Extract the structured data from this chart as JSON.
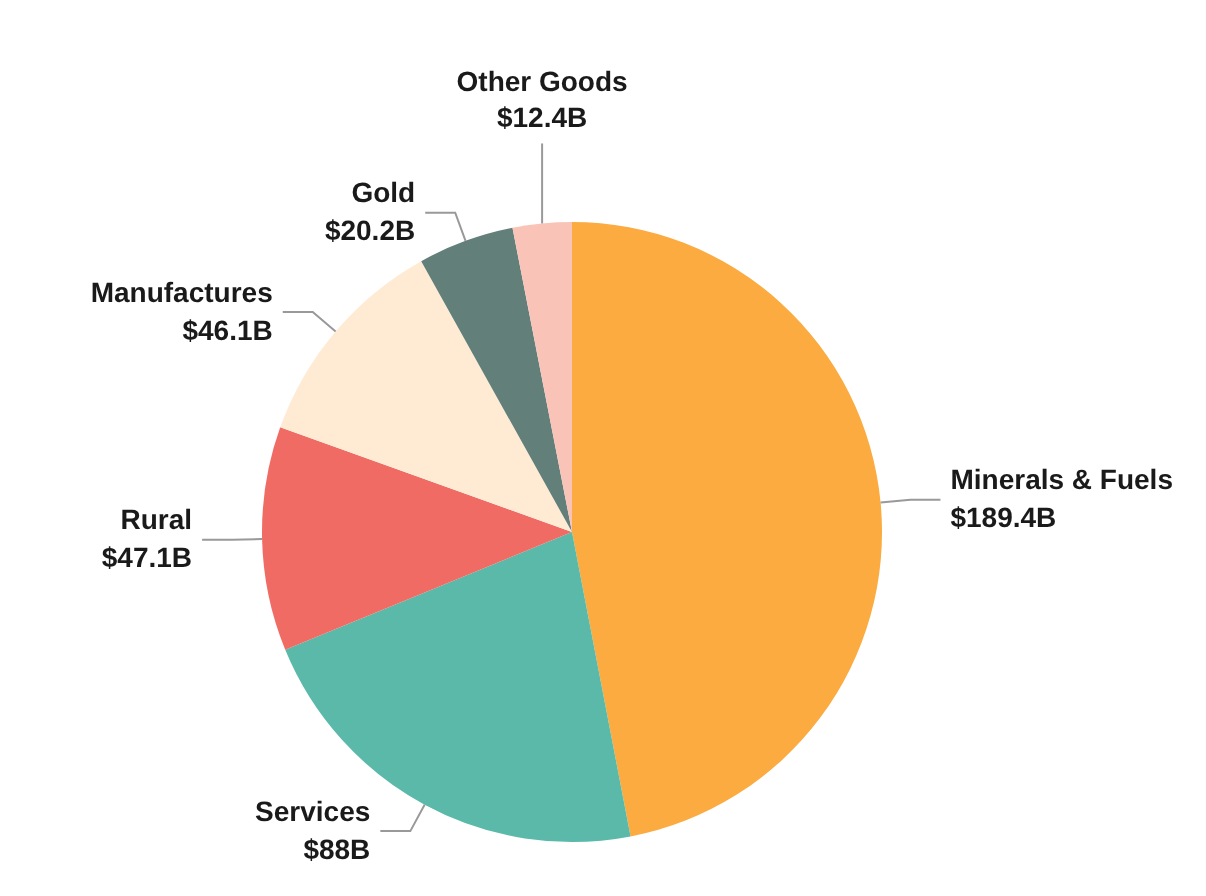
{
  "chart_data": {
    "type": "pie",
    "categories": [
      "Minerals & Fuels",
      "Services",
      "Rural",
      "Manufactures",
      "Gold",
      "Other Goods"
    ],
    "values": [
      189.4,
      88,
      47.1,
      46.1,
      20.2,
      12.4
    ],
    "colors": [
      "#fbab3f",
      "#5bb9a9",
      "#f06b64",
      "#ffebd3",
      "#637f7a",
      "#f9c3b8"
    ],
    "value_labels": [
      "$189.4B",
      "$88B",
      "$47.1B",
      "$46.1B",
      "$20.2B",
      "$12.4B"
    ]
  }
}
